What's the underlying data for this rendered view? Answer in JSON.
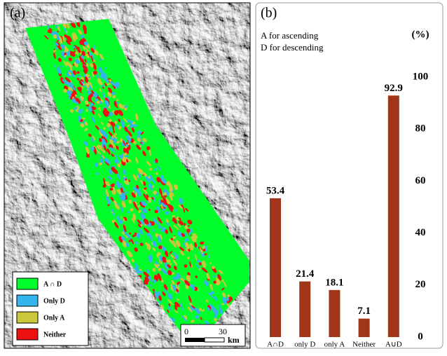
{
  "panel_a": {
    "label": "(a)",
    "legend": [
      {
        "label": "A ∩ D",
        "color": "#00ff2a"
      },
      {
        "label": "Only D",
        "color": "#33b4ee"
      },
      {
        "label": "Only A",
        "color": "#c8c83a"
      },
      {
        "label": "Neither",
        "color": "#ee1111"
      }
    ],
    "scale": {
      "ticks": [
        0,
        30
      ],
      "unit": "km"
    }
  },
  "chart_data": {
    "type": "bar",
    "panel_label": "(b)",
    "annotations": [
      "A for ascending",
      "D for descending"
    ],
    "y_unit_label": "(%)",
    "categories": [
      "A∩D",
      "only D",
      "only A",
      "Neither",
      "A∪D"
    ],
    "values": [
      53.4,
      21.4,
      18.1,
      7.1,
      92.9
    ],
    "color": "#a0351a",
    "ylim": [
      0,
      100
    ],
    "yticks": [
      0,
      20,
      40,
      60,
      80,
      100
    ]
  }
}
